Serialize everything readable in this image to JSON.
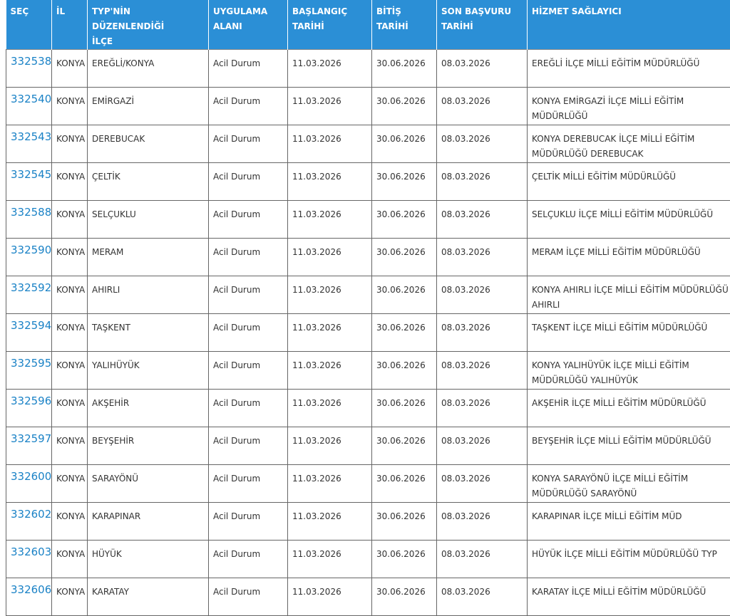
{
  "table": {
    "header": [
      [
        "SEÇ"
      ],
      [
        "İL"
      ],
      [
        "TYP'NİN DÜZENLENDİĞİ",
        "İLÇE"
      ],
      [
        "UYGULAMA",
        "ALANI"
      ],
      [
        "BAŞLANGIÇ",
        "TARİHİ"
      ],
      [
        "BİTİŞ",
        "TARİHİ"
      ],
      [
        "SON BAŞVURU",
        "TARİHİ"
      ],
      [
        "HİZMET SAĞLAYICI"
      ]
    ],
    "rows": [
      [
        "332538",
        "KONYA",
        "EREĞLİ/KONYA",
        "Acil Durum",
        "11.03.2026",
        "30.06.2026",
        "08.03.2026",
        "EREĞLİ İLÇE MİLLİ EĞİTİM MÜDÜRLÜĞÜ"
      ],
      [
        "332540",
        "KONYA",
        "EMİRGAZİ",
        "Acil Durum",
        "11.03.2026",
        "30.06.2026",
        "08.03.2026",
        "KONYA EMİRGAZİ İLÇE MİLLİ EĞİTİM MÜDÜRLÜĞÜ"
      ],
      [
        "332543",
        "KONYA",
        "DEREBUCAK",
        "Acil Durum",
        "11.03.2026",
        "30.06.2026",
        "08.03.2026",
        "KONYA DEREBUCAK İLÇE MİLLİ EĞİTİM MÜDÜRLÜĞÜ DEREBUCAK"
      ],
      [
        "332545",
        "KONYA",
        "ÇELTİK",
        "Acil Durum",
        "11.03.2026",
        "30.06.2026",
        "08.03.2026",
        "ÇELTİK MİLLİ EĞİTİM MÜDÜRLÜĞÜ"
      ],
      [
        "332588",
        "KONYA",
        "SELÇUKLU",
        "Acil Durum",
        "11.03.2026",
        "30.06.2026",
        "08.03.2026",
        "SELÇUKLU İLÇE MİLLİ EĞİTİM MÜDÜRLÜĞÜ"
      ],
      [
        "332590",
        "KONYA",
        "MERAM",
        "Acil Durum",
        "11.03.2026",
        "30.06.2026",
        "08.03.2026",
        "MERAM İLÇE MİLLİ EĞİTİM MÜDÜRLÜĞÜ"
      ],
      [
        "332592",
        "KONYA",
        "AHIRLI",
        "Acil Durum",
        "11.03.2026",
        "30.06.2026",
        "08.03.2026",
        "KONYA AHIRLI İLÇE MİLLİ EĞİTİM MÜDÜRLÜĞÜ AHIRLI"
      ],
      [
        "332594",
        "KONYA",
        "TAŞKENT",
        "Acil Durum",
        "11.03.2026",
        "30.06.2026",
        "08.03.2026",
        "TAŞKENT İLÇE MİLLİ EĞİTİM MÜDÜRLÜĞÜ"
      ],
      [
        "332595",
        "KONYA",
        "YALIHÜYÜK",
        "Acil Durum",
        "11.03.2026",
        "30.06.2026",
        "08.03.2026",
        "KONYA YALIHÜYÜK İLÇE MİLLİ EĞİTİM MÜDÜRLÜĞÜ YALIHÜYÜK"
      ],
      [
        "332596",
        "KONYA",
        "AKŞEHİR",
        "Acil Durum",
        "11.03.2026",
        "30.06.2026",
        "08.03.2026",
        "AKŞEHİR İLÇE MİLLİ EĞİTİM MÜDÜRLÜĞÜ"
      ],
      [
        "332597",
        "KONYA",
        "BEYŞEHİR",
        "Acil Durum",
        "11.03.2026",
        "30.06.2026",
        "08.03.2026",
        "BEYŞEHİR İLÇE MİLLİ EĞİTİM MÜDÜRLÜĞÜ"
      ],
      [
        "332600",
        "KONYA",
        "SARAYÖNÜ",
        "Acil Durum",
        "11.03.2026",
        "30.06.2026",
        "08.03.2026",
        "KONYA SARAYÖNÜ İLÇE MİLLİ EĞİTİM MÜDÜRLÜĞÜ SARAYÖNÜ"
      ],
      [
        "332602",
        "KONYA",
        "KARAPINAR",
        "Acil Durum",
        "11.03.2026",
        "30.06.2026",
        "08.03.2026",
        "KARAPINAR İLÇE MİLLİ EĞİTİM MÜD"
      ],
      [
        "332603",
        "KONYA",
        "HÜYÜK",
        "Acil Durum",
        "11.03.2026",
        "30.06.2026",
        "08.03.2026",
        "HÜYÜK İLÇE MİLLİ EĞİTİM MÜDÜRLÜĞÜ TYP"
      ],
      [
        "332606",
        "KONYA",
        "KARATAY",
        "Acil Durum",
        "11.03.2026",
        "30.06.2026",
        "08.03.2026",
        "KARATAY İLÇE MİLLİ EĞİTİM MÜDÜRLÜĞÜ"
      ]
    ]
  }
}
